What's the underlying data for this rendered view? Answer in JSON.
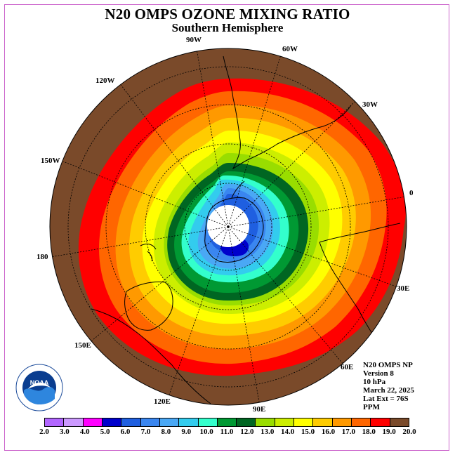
{
  "title": "N20 OMPS OZONE MIXING RATIO",
  "subtitle": "Southern Hemisphere",
  "longitude_labels": [
    "90W",
    "60W",
    "30W",
    "0",
    "30E",
    "60E",
    "90E",
    "120E",
    "150E",
    "180",
    "150W",
    "120W"
  ],
  "info": {
    "line1": "N20 OMPS NP",
    "line2": "Version 8",
    "line3": "10 hPa",
    "line4": "March 22, 2025",
    "line5": "Lat Ext = 76S",
    "line6": "PPM"
  },
  "logo": {
    "text": "NOAA",
    "ring_text": "NATIONAL OCEANIC AND ATMOSPHERIC ADMINISTRATION · U.S. DEPARTMENT OF COMMERCE"
  },
  "colorbar": {
    "colors": [
      "#b266ff",
      "#cc99ff",
      "#ff00ff",
      "#0000cc",
      "#1f5fe0",
      "#3a86f0",
      "#4aa8f5",
      "#33ccee",
      "#33ffcc",
      "#009933",
      "#006622",
      "#99dd00",
      "#ccee00",
      "#ffff00",
      "#ffcc00",
      "#ff9900",
      "#ff6600",
      "#ff0000",
      "#7a4a2a"
    ],
    "ticks": [
      "2.0",
      "3.0",
      "4.0",
      "5.0",
      "6.0",
      "7.0",
      "8.0",
      "9.0",
      "10.0",
      "11.0",
      "12.0",
      "13.0",
      "14.0",
      "15.0",
      "16.0",
      "17.0",
      "18.0",
      "19.0",
      "20.0"
    ]
  },
  "colors": {
    "map_background": "#7a4a2a",
    "pole_mask": "#ffffff"
  }
}
